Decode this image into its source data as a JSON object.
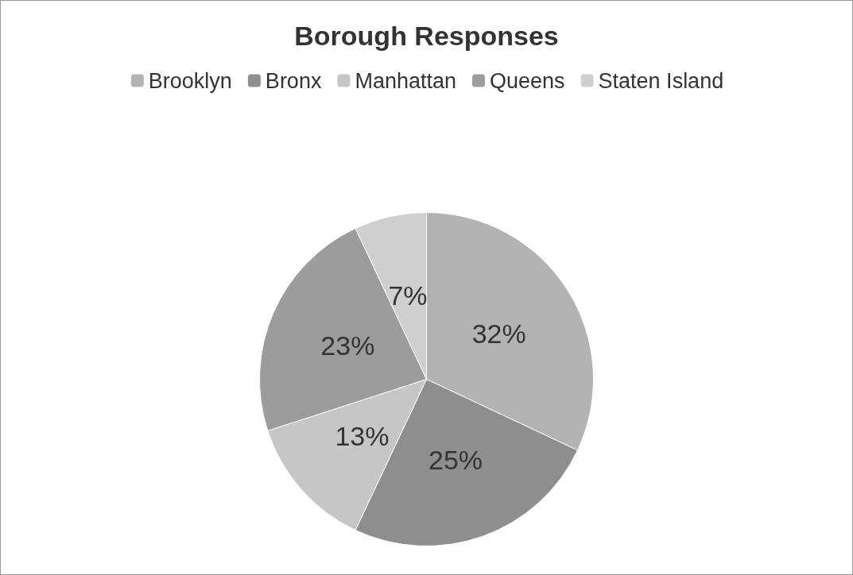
{
  "chart_data": {
    "type": "pie",
    "title": "Borough Responses",
    "categories": [
      "Brooklyn",
      "Bronx",
      "Manhattan",
      "Queens",
      "Staten Island"
    ],
    "values": [
      32,
      25,
      13,
      23,
      7
    ],
    "value_labels": [
      "32%",
      "25%",
      "13%",
      "23%",
      "7%"
    ],
    "colors": [
      "#b3b3b3",
      "#8e8e8e",
      "#c6c6c6",
      "#9c9c9c",
      "#cfcfcf"
    ],
    "legend": "top"
  }
}
